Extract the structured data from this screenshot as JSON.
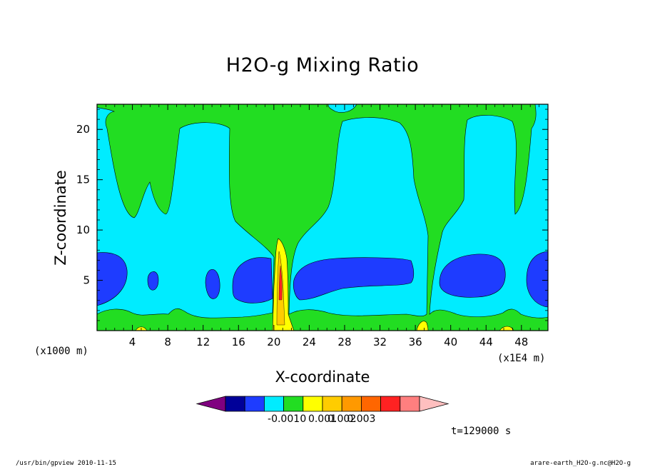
{
  "chart_data": {
    "type": "heatmap",
    "title": "H2O-g Mixing Ratio",
    "xlabel": "X-coordinate",
    "ylabel": "Z-coordinate",
    "x_unit": "(x1000 m)",
    "x_exponent_label": "(x1E4 m)",
    "x_ticks": [
      4,
      8,
      12,
      16,
      20,
      24,
      28,
      32,
      36,
      40,
      44,
      48
    ],
    "y_ticks": [
      5,
      10,
      15,
      20
    ],
    "xlim": [
      0,
      51
    ],
    "ylim": [
      0,
      22.5
    ],
    "colorbar": {
      "colors": [
        "#800080",
        "#000099",
        "#1e3cff",
        "#00ecff",
        "#22dd22",
        "#ffff00",
        "#ffcc00",
        "#ff9900",
        "#ff6600",
        "#ff2222",
        "#ff7f7f",
        "#ffbfbf"
      ],
      "tick_labels": [
        "-0.001",
        "0",
        "0.001",
        "0.002",
        "0.003"
      ]
    },
    "time_label": "t=129000 s"
  },
  "footer": {
    "left": "/usr/bin/gpview   2010-11-15",
    "right": "arare-earth_H2O-g.nc@H2O-g"
  }
}
